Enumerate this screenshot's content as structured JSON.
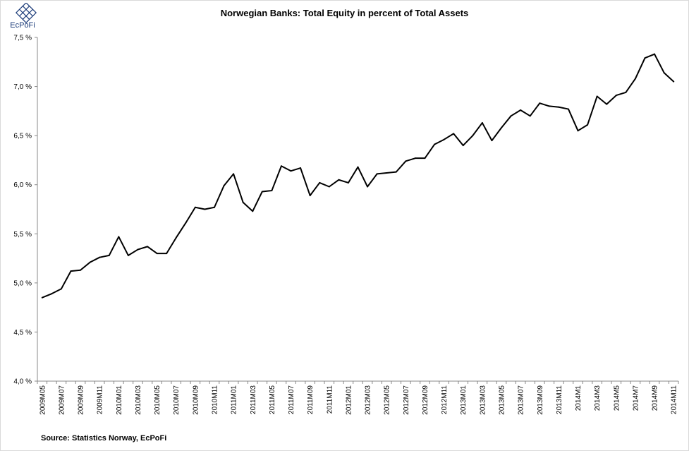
{
  "logo": {
    "text": "EcPoFi",
    "icon": "ecpofi-diamond-logo",
    "color": "#1a3a78"
  },
  "source": "Source: Statistics Norway, EcPoFi",
  "chart_data": {
    "type": "line",
    "title": "Norwegian Banks: Total Equity in percent of Total Assets",
    "xlabel": "",
    "ylabel": "",
    "ylim": [
      4.0,
      7.5
    ],
    "yticks": [
      4.0,
      4.5,
      5.0,
      5.5,
      6.0,
      6.5,
      7.0,
      7.5
    ],
    "ytick_labels": [
      "4,0 %",
      "4,5 %",
      "5,0 %",
      "5,5 %",
      "6,0 %",
      "6,5 %",
      "7,0 %",
      "7,5 %"
    ],
    "grid": false,
    "legend": "none",
    "line_color": "#000000",
    "x": [
      "2009M05",
      "2009M06",
      "2009M07",
      "2009M08",
      "2009M09",
      "2009M10",
      "2009M11",
      "2009M12",
      "2010M01",
      "2010M02",
      "2010M03",
      "2010M04",
      "2010M05",
      "2010M06",
      "2010M07",
      "2010M08",
      "2010M09",
      "2010M10",
      "2010M11",
      "2010M12",
      "2011M01",
      "2011M02",
      "2011M03",
      "2011M04",
      "2011M05",
      "2011M06",
      "2011M07",
      "2011M08",
      "2011M09",
      "2011M10",
      "2011M11",
      "2011M12",
      "2012M01",
      "2012M02",
      "2012M03",
      "2012M04",
      "2012M05",
      "2012M06",
      "2012M07",
      "2012M08",
      "2012M09",
      "2012M10",
      "2012M11",
      "2012M12",
      "2013M01",
      "2013M02",
      "2013M03",
      "2013M04",
      "2013M05",
      "2013M06",
      "2013M07",
      "2013M08",
      "2013M09",
      "2013M10",
      "2013M11",
      "2013M12",
      "2014M1",
      "2014M2",
      "2014M3",
      "2014M4",
      "2014M5",
      "2014M6",
      "2014M7",
      "2014M8",
      "2014M9",
      "2014M10",
      "2014M11"
    ],
    "tick_labels": [
      "2009M05",
      "2009M07",
      "2009M09",
      "2009M11",
      "2010M01",
      "2010M03",
      "2010M05",
      "2010M07",
      "2010M09",
      "2010M11",
      "2011M01",
      "2011M03",
      "2011M05",
      "2011M07",
      "2011M09",
      "2011M11",
      "2012M01",
      "2012M03",
      "2012M05",
      "2012M07",
      "2012M09",
      "2012M11",
      "2013M01",
      "2013M03",
      "2013M05",
      "2013M07",
      "2013M09",
      "2013M11",
      "2014M1",
      "2014M3",
      "2014M5",
      "2014M7",
      "2014M9",
      "2014M11"
    ],
    "values": [
      4.85,
      4.89,
      4.94,
      5.12,
      5.13,
      5.21,
      5.26,
      5.28,
      5.47,
      5.28,
      5.34,
      5.37,
      5.3,
      5.3,
      5.46,
      5.61,
      5.77,
      5.75,
      5.77,
      5.99,
      6.11,
      5.82,
      5.73,
      5.93,
      5.94,
      6.19,
      6.14,
      6.17,
      5.89,
      6.02,
      5.98,
      6.05,
      6.02,
      6.18,
      5.98,
      6.11,
      6.12,
      6.13,
      6.24,
      6.27,
      6.27,
      6.41,
      6.46,
      6.52,
      6.4,
      6.5,
      6.63,
      6.45,
      6.58,
      6.7,
      6.76,
      6.7,
      6.83,
      6.8,
      6.79,
      6.77,
      6.55,
      6.61,
      6.9,
      6.82,
      6.91,
      6.94,
      7.08,
      7.29,
      7.33,
      7.14,
      7.05
    ]
  }
}
